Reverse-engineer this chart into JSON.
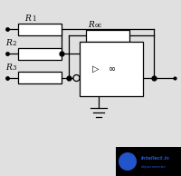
{
  "bg_color": "#e0e0e0",
  "line_color": "#000000",
  "R1_label": "R",
  "R1_sub": "1",
  "R2_label": "R",
  "R2_sub": "2",
  "R3_label": "R",
  "R3_sub": "3",
  "Roc_label": "R",
  "Roc_sub": "oc",
  "opamp_sym1": "▷",
  "opamp_sym2": "∞",
  "watermark_bg": "#000000",
  "watermark_circle_color": "#2255cc",
  "watermark_text1": "Intellect.in",
  "watermark_text2": "образование"
}
